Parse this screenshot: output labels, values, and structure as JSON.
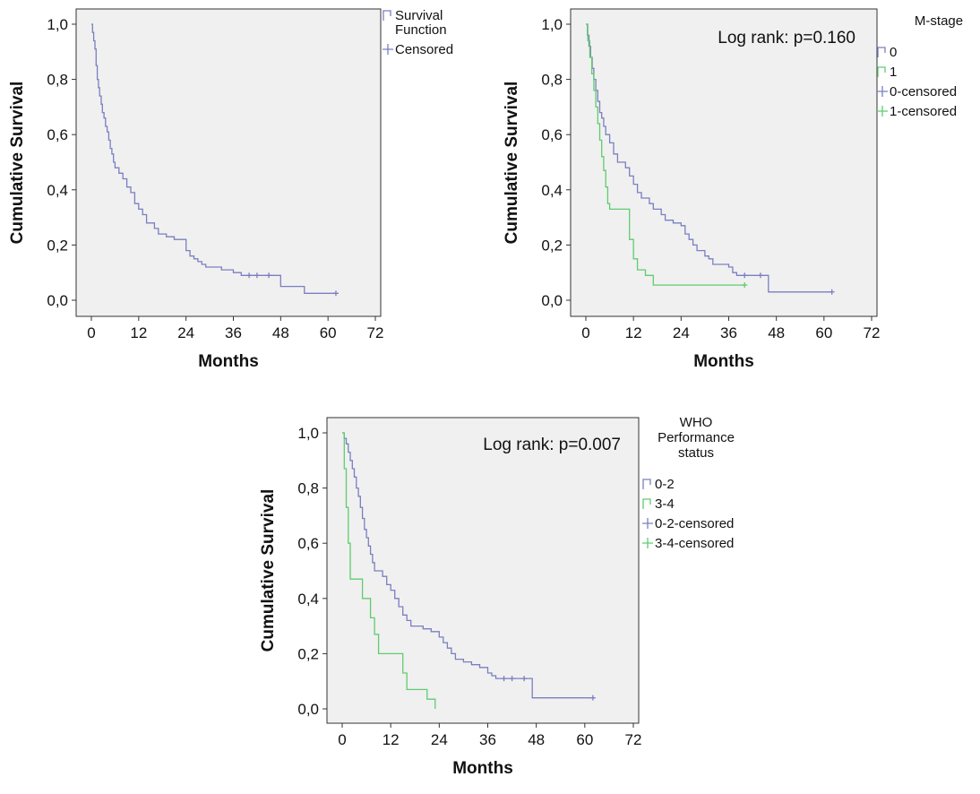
{
  "colors": {
    "blue": "#7a7fc0",
    "green": "#5fcc70",
    "panel_bg": "#f0f0f0",
    "axis": "#333333"
  },
  "chart_data": [
    {
      "type": "line",
      "subtype": "kaplan-meier",
      "xlabel": "Months",
      "ylabel": "Cumulative Survival",
      "xlim": [
        0,
        72
      ],
      "ylim": [
        0,
        1
      ],
      "xticks": [
        "0",
        "12",
        "24",
        "36",
        "48",
        "60",
        "72"
      ],
      "yticks": [
        "0,0",
        "0,2",
        "0,4",
        "0,6",
        "0,8",
        "1,0"
      ],
      "annotation": "",
      "legend_title": [],
      "legend": [
        {
          "label": [
            "Survival",
            "Function"
          ],
          "kind": "line",
          "color": "blue"
        },
        {
          "label": [
            "Censored"
          ],
          "kind": "cross",
          "color": "blue"
        }
      ],
      "series": [
        {
          "name": "Survival Function",
          "color": "blue",
          "steps": [
            [
              0,
              1
            ],
            [
              0.3,
              0.97
            ],
            [
              0.6,
              0.94
            ],
            [
              0.9,
              0.91
            ],
            [
              1.2,
              0.85
            ],
            [
              1.5,
              0.8
            ],
            [
              1.8,
              0.77
            ],
            [
              2.1,
              0.74
            ],
            [
              2.5,
              0.71
            ],
            [
              2.8,
              0.68
            ],
            [
              3.2,
              0.66
            ],
            [
              3.6,
              0.63
            ],
            [
              4,
              0.61
            ],
            [
              4.4,
              0.58
            ],
            [
              4.8,
              0.55
            ],
            [
              5.2,
              0.53
            ],
            [
              5.6,
              0.5
            ],
            [
              6,
              0.48
            ],
            [
              7,
              0.46
            ],
            [
              8,
              0.44
            ],
            [
              9,
              0.41
            ],
            [
              10,
              0.39
            ],
            [
              11,
              0.35
            ],
            [
              12,
              0.33
            ],
            [
              13,
              0.31
            ],
            [
              14,
              0.28
            ],
            [
              16,
              0.26
            ],
            [
              17,
              0.24
            ],
            [
              19,
              0.23
            ],
            [
              21,
              0.22
            ],
            [
              24,
              0.18
            ],
            [
              25,
              0.16
            ],
            [
              26,
              0.15
            ],
            [
              27,
              0.14
            ],
            [
              28,
              0.13
            ],
            [
              29,
              0.12
            ],
            [
              33,
              0.11
            ],
            [
              36,
              0.1
            ],
            [
              38,
              0.09
            ],
            [
              48,
              0.05
            ],
            [
              54,
              0.025
            ],
            [
              62,
              0.025
            ]
          ],
          "censored": [
            [
              40,
              0.09
            ],
            [
              42,
              0.09
            ],
            [
              45,
              0.09
            ],
            [
              62,
              0.025
            ]
          ]
        }
      ]
    },
    {
      "type": "line",
      "subtype": "kaplan-meier",
      "xlabel": "Months",
      "ylabel": "Cumulative Survival",
      "xlim": [
        0,
        72
      ],
      "ylim": [
        0,
        1
      ],
      "xticks": [
        "0",
        "12",
        "24",
        "36",
        "48",
        "60",
        "72"
      ],
      "yticks": [
        "0,0",
        "0,2",
        "0,4",
        "0,6",
        "0,8",
        "1,0"
      ],
      "annotation": "Log rank: p=0.160",
      "legend_title": [
        "M-stage"
      ],
      "legend": [
        {
          "label": [
            "0"
          ],
          "kind": "line",
          "color": "blue"
        },
        {
          "label": [
            "1"
          ],
          "kind": "line",
          "color": "green"
        },
        {
          "label": [
            "0-censored"
          ],
          "kind": "cross",
          "color": "blue"
        },
        {
          "label": [
            "1-censored"
          ],
          "kind": "cross",
          "color": "green"
        }
      ],
      "series": [
        {
          "name": "0",
          "color": "blue",
          "steps": [
            [
              0,
              1
            ],
            [
              0.4,
              0.96
            ],
            [
              0.8,
              0.92
            ],
            [
              1.2,
              0.88
            ],
            [
              1.6,
              0.84
            ],
            [
              2,
              0.8
            ],
            [
              2.5,
              0.76
            ],
            [
              3,
              0.72
            ],
            [
              3.5,
              0.68
            ],
            [
              4,
              0.66
            ],
            [
              4.5,
              0.63
            ],
            [
              5,
              0.6
            ],
            [
              6,
              0.57
            ],
            [
              7,
              0.53
            ],
            [
              8,
              0.5
            ],
            [
              10,
              0.48
            ],
            [
              11,
              0.45
            ],
            [
              12,
              0.42
            ],
            [
              13,
              0.39
            ],
            [
              14,
              0.37
            ],
            [
              16,
              0.35
            ],
            [
              17,
              0.33
            ],
            [
              19,
              0.31
            ],
            [
              20,
              0.29
            ],
            [
              22,
              0.28
            ],
            [
              24,
              0.27
            ],
            [
              25,
              0.24
            ],
            [
              26,
              0.22
            ],
            [
              27,
              0.2
            ],
            [
              28,
              0.18
            ],
            [
              30,
              0.16
            ],
            [
              31,
              0.15
            ],
            [
              32,
              0.13
            ],
            [
              36,
              0.12
            ],
            [
              37,
              0.1
            ],
            [
              38,
              0.09
            ],
            [
              42,
              0.09
            ],
            [
              46,
              0.03
            ],
            [
              62,
              0.03
            ]
          ],
          "censored": [
            [
              40,
              0.09
            ],
            [
              44,
              0.09
            ],
            [
              62,
              0.03
            ]
          ]
        },
        {
          "name": "1",
          "color": "green",
          "steps": [
            [
              0,
              1
            ],
            [
              0.5,
              0.94
            ],
            [
              1,
              0.88
            ],
            [
              1.5,
              0.82
            ],
            [
              2,
              0.76
            ],
            [
              2.5,
              0.7
            ],
            [
              3,
              0.64
            ],
            [
              3.5,
              0.58
            ],
            [
              4,
              0.52
            ],
            [
              4.5,
              0.47
            ],
            [
              5,
              0.41
            ],
            [
              5.5,
              0.35
            ],
            [
              6,
              0.33
            ],
            [
              11,
              0.22
            ],
            [
              12,
              0.15
            ],
            [
              13,
              0.11
            ],
            [
              15,
              0.09
            ],
            [
              17,
              0.055
            ],
            [
              40,
              0.055
            ]
          ],
          "censored": [
            [
              40,
              0.055
            ]
          ]
        }
      ]
    },
    {
      "type": "line",
      "subtype": "kaplan-meier",
      "xlabel": "Months",
      "ylabel": "Cumulative Survival",
      "xlim": [
        0,
        72
      ],
      "ylim": [
        0,
        1
      ],
      "xticks": [
        "0",
        "12",
        "24",
        "36",
        "48",
        "60",
        "72"
      ],
      "yticks": [
        "0,0",
        "0,2",
        "0,4",
        "0,6",
        "0,8",
        "1,0"
      ],
      "annotation": "Log rank: p=0.007",
      "legend_title": [
        "WHO",
        "Performance",
        "status"
      ],
      "legend": [
        {
          "label": [
            "0-2"
          ],
          "kind": "line",
          "color": "blue"
        },
        {
          "label": [
            "3-4"
          ],
          "kind": "line",
          "color": "green"
        },
        {
          "label": [
            "0-2-censored"
          ],
          "kind": "cross",
          "color": "blue"
        },
        {
          "label": [
            "3-4-censored"
          ],
          "kind": "cross",
          "color": "green"
        }
      ],
      "series": [
        {
          "name": "0-2",
          "color": "blue",
          "steps": [
            [
              0,
              1
            ],
            [
              0.5,
              0.98
            ],
            [
              1,
              0.96
            ],
            [
              1.5,
              0.93
            ],
            [
              2,
              0.9
            ],
            [
              2.5,
              0.87
            ],
            [
              3,
              0.84
            ],
            [
              3.5,
              0.8
            ],
            [
              4,
              0.77
            ],
            [
              4.5,
              0.73
            ],
            [
              5,
              0.69
            ],
            [
              5.5,
              0.65
            ],
            [
              6,
              0.62
            ],
            [
              6.5,
              0.59
            ],
            [
              7,
              0.56
            ],
            [
              7.5,
              0.53
            ],
            [
              8,
              0.5
            ],
            [
              10,
              0.48
            ],
            [
              11,
              0.45
            ],
            [
              12,
              0.43
            ],
            [
              13,
              0.4
            ],
            [
              14,
              0.37
            ],
            [
              15,
              0.34
            ],
            [
              16,
              0.32
            ],
            [
              17,
              0.3
            ],
            [
              20,
              0.29
            ],
            [
              22,
              0.28
            ],
            [
              24,
              0.26
            ],
            [
              25,
              0.24
            ],
            [
              26,
              0.22
            ],
            [
              27,
              0.2
            ],
            [
              28,
              0.18
            ],
            [
              30,
              0.17
            ],
            [
              32,
              0.16
            ],
            [
              34,
              0.15
            ],
            [
              36,
              0.13
            ],
            [
              37,
              0.12
            ],
            [
              38,
              0.11
            ],
            [
              47,
              0.04
            ],
            [
              62,
              0.04
            ]
          ],
          "censored": [
            [
              40,
              0.11
            ],
            [
              42,
              0.11
            ],
            [
              45,
              0.11
            ],
            [
              62,
              0.04
            ]
          ]
        },
        {
          "name": "3-4",
          "color": "green",
          "steps": [
            [
              0,
              1
            ],
            [
              0.5,
              0.87
            ],
            [
              1,
              0.73
            ],
            [
              1.5,
              0.6
            ],
            [
              2,
              0.47
            ],
            [
              5,
              0.4
            ],
            [
              7,
              0.33
            ],
            [
              8,
              0.27
            ],
            [
              9,
              0.2
            ],
            [
              15,
              0.13
            ],
            [
              16,
              0.07
            ],
            [
              21,
              0.035
            ],
            [
              23,
              0
            ]
          ],
          "censored": []
        }
      ]
    }
  ]
}
